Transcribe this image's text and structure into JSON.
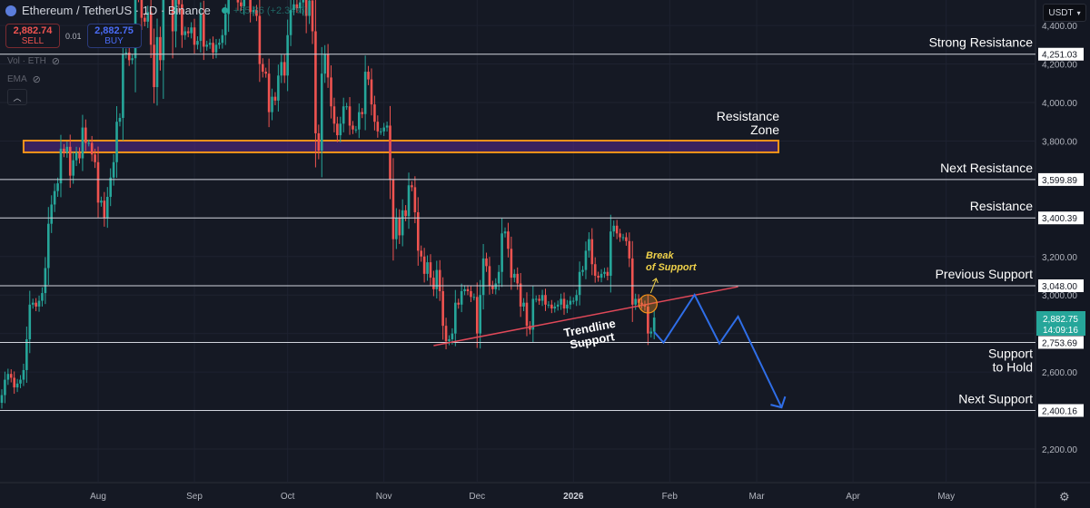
{
  "header": {
    "symbol": "Ethereum / TetherUS · 1D · Binance",
    "change": "+65.86 (+2.34%)"
  },
  "trade": {
    "sell_price": "2,882.74",
    "sell_label": "SELL",
    "spread": "0.01",
    "buy_price": "2,882.75",
    "buy_label": "BUY"
  },
  "indicators": [
    {
      "label": "Vol · ETH",
      "icon": "eye-off-icon"
    },
    {
      "label": "EMA",
      "icon": "eye-off-icon"
    }
  ],
  "currency": "USDT",
  "colors": {
    "background": "#151924",
    "up": "#26a69a",
    "down": "#ef5350",
    "zone": "#f7931a",
    "trendline": "#e04858",
    "projection": "#2f6ee8",
    "annotation_yellow": "#f0d24a"
  },
  "chart_data": {
    "type": "candlestick",
    "interval": "1D",
    "y_axis": {
      "range": [
        2050,
        4530
      ],
      "ticks": [
        4400,
        4200,
        4000,
        3800,
        3200,
        3000,
        2600,
        2200
      ],
      "tick_labels": [
        "4,400.00",
        "4,200.00",
        "4,000.00",
        "3,800.00",
        "3,200.00",
        "3,000.00",
        "2,600.00",
        "2,200.00"
      ]
    },
    "x_axis": {
      "ticks": [
        "Aug",
        "Sep",
        "Oct",
        "Nov",
        "Dec",
        "2026",
        "Feb",
        "Mar",
        "Apr",
        "May"
      ],
      "tick_dates": [
        "2025-08-01",
        "2025-09-01",
        "2025-10-01",
        "2025-11-01",
        "2025-12-01",
        "2026-01-01",
        "2026-02-01",
        "2026-03-01",
        "2026-04-01",
        "2026-05-01"
      ]
    },
    "daily_closes_by_month": {
      "2025-07": [
        2480,
        2560,
        2590,
        2570,
        2520,
        2540,
        2560,
        2610,
        2770,
        2950,
        2960,
        2940,
        2970,
        3010,
        3140,
        3370,
        3470,
        3540,
        3580,
        3760,
        3740,
        3770,
        3620,
        3700,
        3740,
        3710,
        3870,
        3790,
        3790,
        3730,
        3690
      ],
      "2025-08": [
        3480,
        3490,
        3400,
        3510,
        3610,
        3690,
        3900,
        3920,
        4250,
        4260,
        4220,
        4230,
        4760,
        4590,
        4440,
        4420,
        4470,
        4300,
        4080,
        4340,
        4220,
        4830,
        4780,
        4780,
        4370,
        4590,
        4510,
        4350,
        4370,
        4360,
        4390
      ],
      "2025-09": [
        4300,
        4320,
        4460,
        4290,
        4300,
        4310,
        4260,
        4300,
        4310,
        4350,
        4460,
        4710,
        4660,
        4600,
        4520,
        4500,
        4590,
        4590,
        4470,
        4480,
        4450,
        4200,
        4160,
        4150,
        3950,
        4030,
        4010,
        4140,
        4210,
        4140
      ],
      "2025-10": [
        4350,
        4480,
        4510,
        4490,
        4520,
        4690,
        4450,
        4530,
        4370,
        3840,
        3750,
        4150,
        4250,
        4130,
        3980,
        3890,
        3830,
        3890,
        3980,
        3980,
        3880,
        3860,
        3860,
        3950,
        3940,
        4160,
        4120,
        3990,
        3900,
        3850,
        3850
      ],
      "2025-11": [
        3870,
        3880,
        3600,
        3290,
        3400,
        3310,
        3440,
        3410,
        3570,
        3560,
        3430,
        3230,
        3200,
        3110,
        3170,
        3090,
        3030,
        3130,
        3020,
        2840,
        2760,
        2770,
        2800,
        2960,
        2950,
        3020,
        3030,
        3020,
        2990,
        2990
      ],
      "2025-12": [
        2800,
        3000,
        3190,
        3150,
        3050,
        3030,
        3060,
        3120,
        3320,
        3330,
        3240,
        3090,
        3110,
        3060,
        2940,
        2960,
        2840,
        2820,
        2980,
        2980,
        2970,
        3000,
        2950,
        2950,
        2930,
        2940,
        2950,
        2980,
        2930,
        2950,
        2970
      ],
      "2026-01": [
        2970,
        3000,
        3120,
        3130,
        3230,
        3290,
        3160,
        3100,
        3090,
        3110,
        3120,
        3100,
        3330,
        3360,
        3320,
        3300,
        3300,
        3280,
        3190,
        2950,
        2980,
        2960,
        2950,
        2940,
        2800,
        2810,
        2882.75
      ]
    },
    "last_price": {
      "value": "2,882.75",
      "countdown": "14:09:16"
    },
    "levels": [
      {
        "price": 4251.03,
        "price_label": "4,251.03",
        "label": "Strong Resistance"
      },
      {
        "price": 3599.89,
        "price_label": "3,599.89",
        "label": "Next Resistance"
      },
      {
        "price": 3400.39,
        "price_label": "3,400.39",
        "label": "Resistance"
      },
      {
        "price": 3048.0,
        "price_label": "3,048.00",
        "label": "Previous Support"
      },
      {
        "price": 2753.69,
        "price_label": "2,753.69",
        "label_lines": [
          "Support",
          "to Hold"
        ]
      },
      {
        "price": 2400.16,
        "price_label": "2,400.16",
        "label": "Next Support"
      }
    ],
    "resistance_zone": {
      "label_lines": [
        "Resistance",
        "Zone"
      ],
      "price_low": 3741,
      "price_high": 3802,
      "from": "2025-07-08",
      "to": "2026-03-08"
    },
    "trendline": {
      "label_lines": [
        "Trendline",
        "Support"
      ],
      "from": {
        "date": "2025-11-17",
        "price": 2737
      },
      "to": {
        "date": "2026-02-23",
        "price": 3043
      }
    },
    "break_marker": {
      "label_lines": [
        "Break",
        "of Support"
      ],
      "date": "2026-01-25",
      "price": 2954
    },
    "projection": [
      {
        "date": "2026-01-27",
        "price": 2808
      },
      {
        "date": "2026-01-30",
        "price": 2753
      },
      {
        "date": "2026-02-09",
        "price": 3001
      },
      {
        "date": "2026-02-17",
        "price": 2748
      },
      {
        "date": "2026-02-23",
        "price": 2888
      },
      {
        "date": "2026-03-09",
        "price": 2416
      }
    ]
  }
}
